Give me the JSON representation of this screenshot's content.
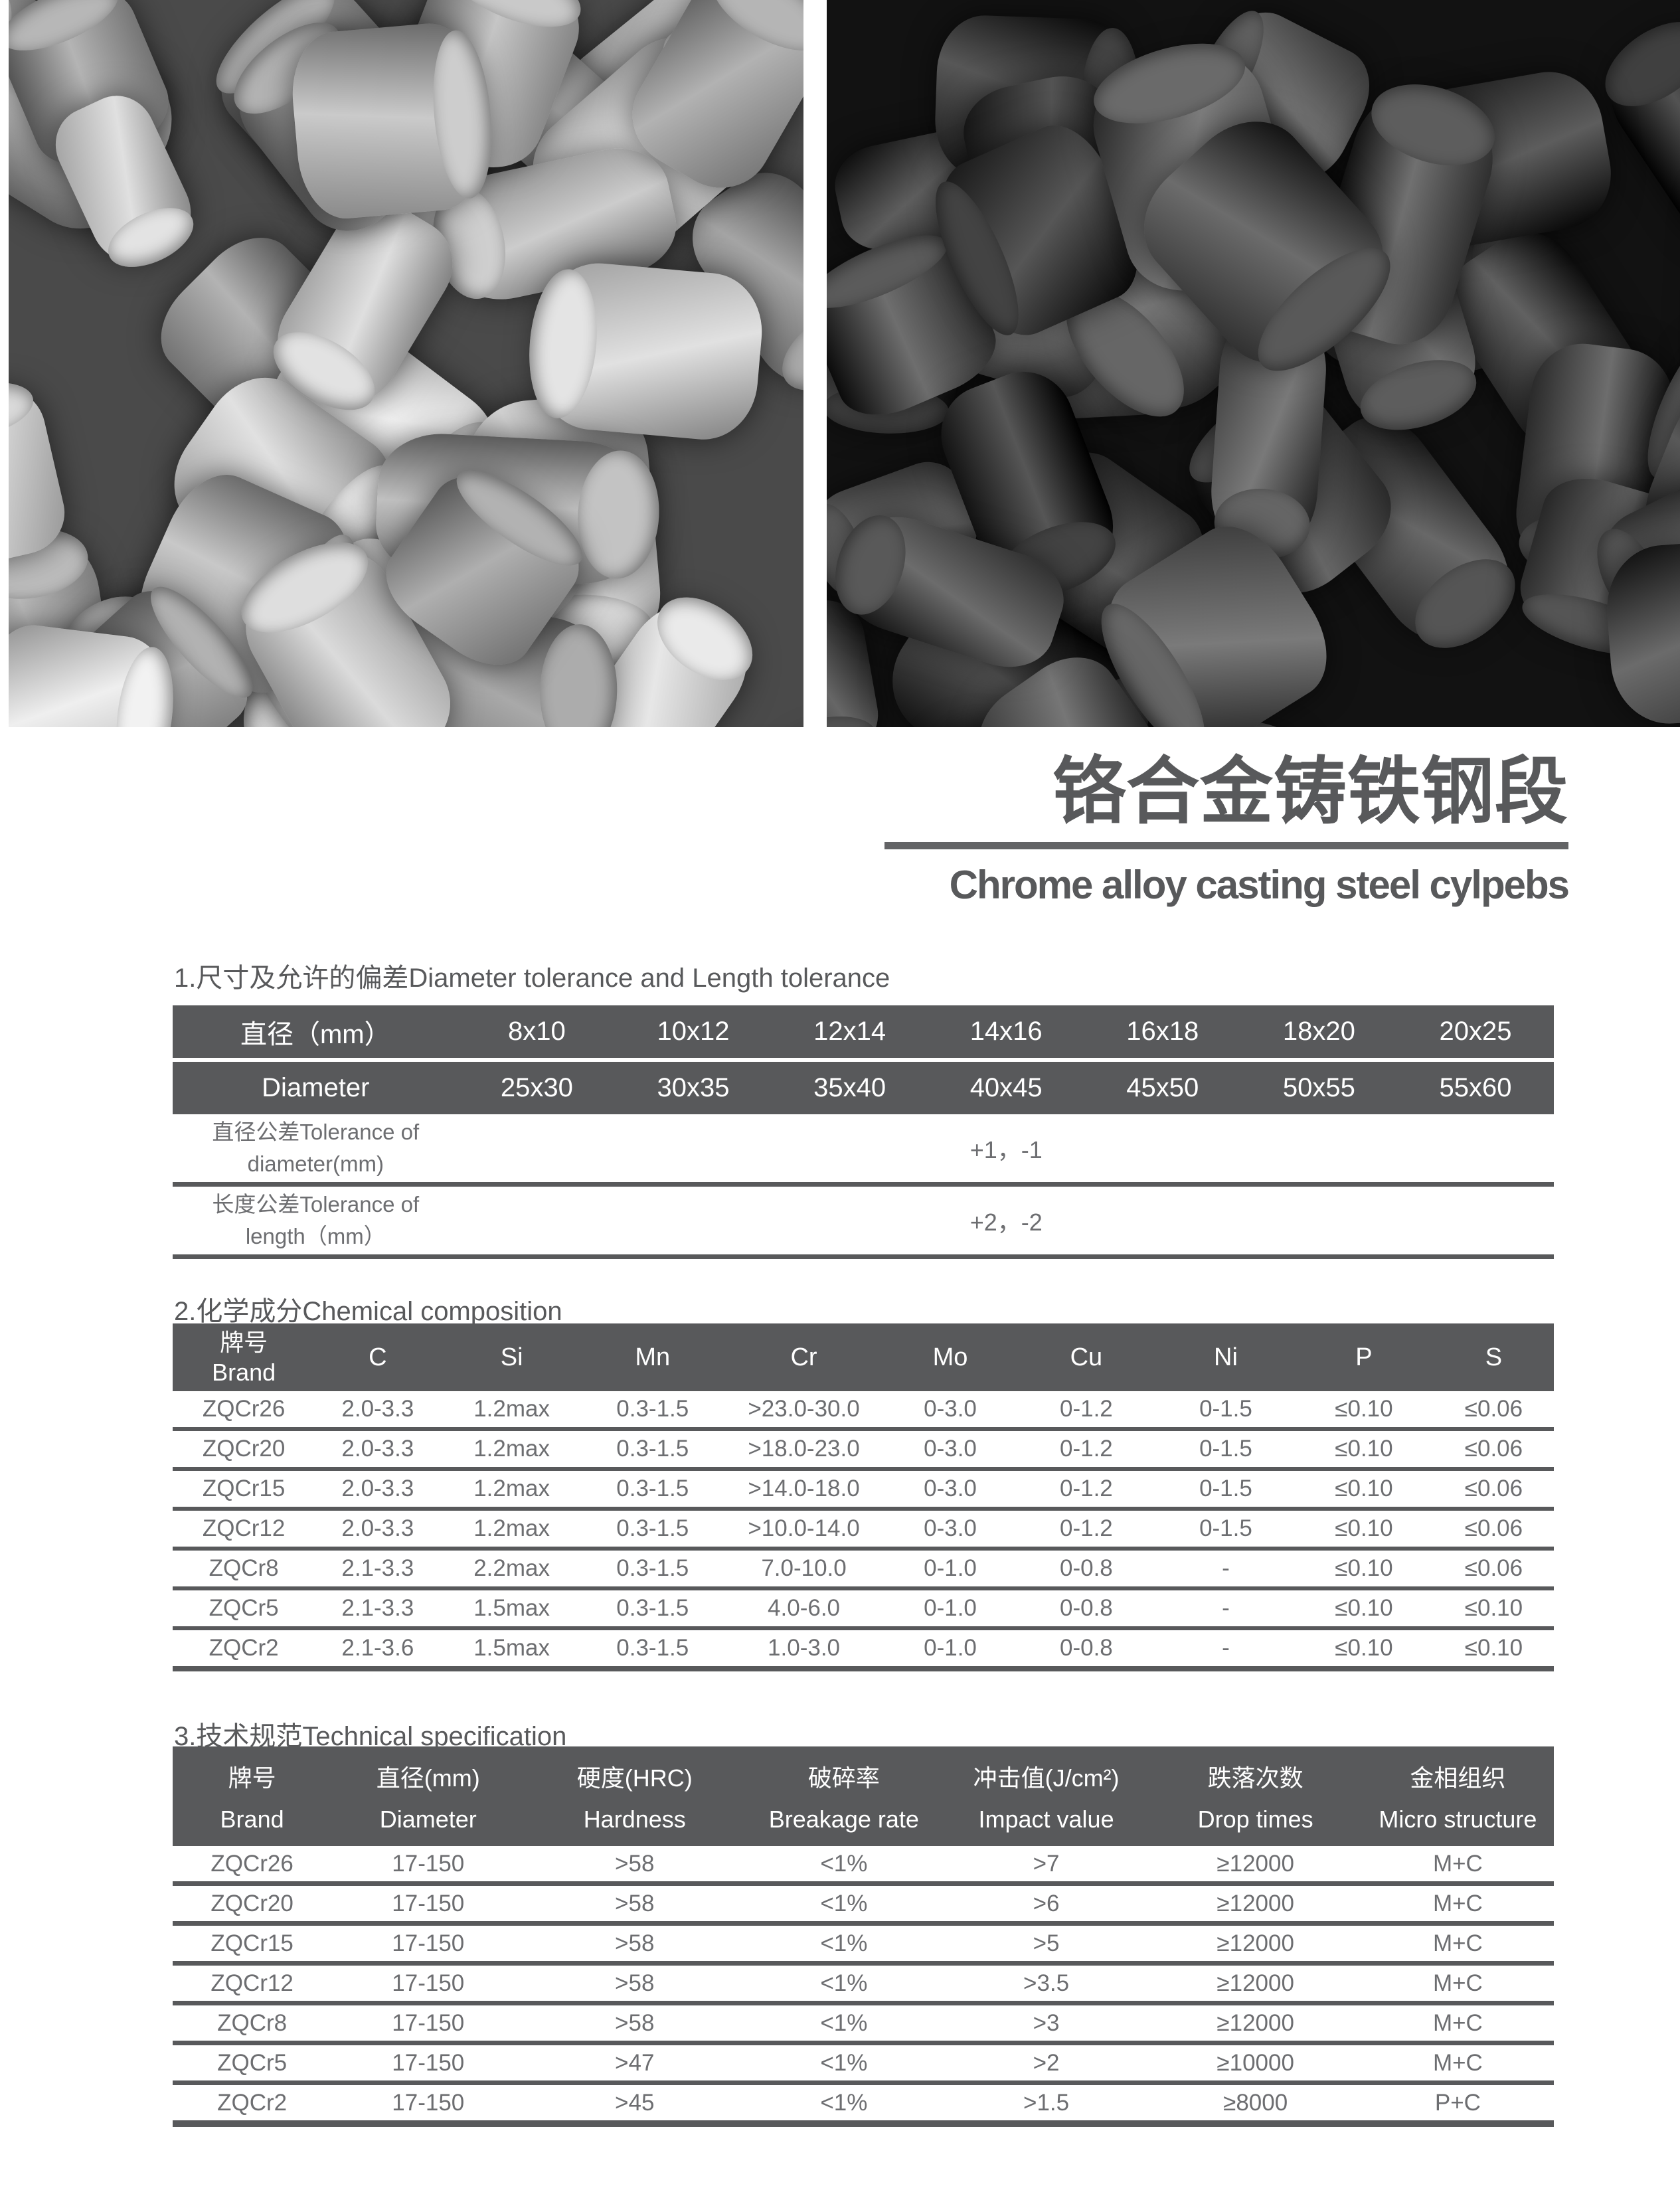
{
  "header": {
    "title_zh": "铬合金铸铁钢段",
    "title_en": "Chrome alloy casting steel cylpebs"
  },
  "colors": {
    "accent": "#58595b",
    "body_text": "#6d6e71"
  },
  "sections": {
    "size": {
      "heading": "1.尺寸及允许的偏差Diameter tolerance and Length tolerance",
      "table": {
        "row1": [
          "直径（mm）",
          "8x10",
          "10x12",
          "12x14",
          "14x16",
          "16x18",
          "18x20",
          "20x25"
        ],
        "row2": [
          "Diameter",
          "25x30",
          "30x35",
          "35x40",
          "40x45",
          "45x50",
          "50x55",
          "55x60"
        ],
        "tolerance_rows": [
          {
            "label_line1": "直径公差Tolerance of",
            "label_line2": "diameter(mm)",
            "value": "+1，-1"
          },
          {
            "label_line1": "长度公差Tolerance of",
            "label_line2": "length（mm）",
            "value": "+2，-2"
          }
        ]
      }
    },
    "chemical": {
      "heading": "2.化学成分Chemical composition",
      "table": {
        "header": {
          "brand_zh": "牌号",
          "brand_en": "Brand",
          "cols": [
            "C",
            "Si",
            "Mn",
            "Cr",
            "Mo",
            "Cu",
            "Ni",
            "P",
            "S"
          ]
        },
        "rows": [
          [
            "ZQCr26",
            "2.0-3.3",
            "1.2max",
            "0.3-1.5",
            ">23.0-30.0",
            "0-3.0",
            "0-1.2",
            "0-1.5",
            "≤0.10",
            "≤0.06"
          ],
          [
            "ZQCr20",
            "2.0-3.3",
            "1.2max",
            "0.3-1.5",
            ">18.0-23.0",
            "0-3.0",
            "0-1.2",
            "0-1.5",
            "≤0.10",
            "≤0.06"
          ],
          [
            "ZQCr15",
            "2.0-3.3",
            "1.2max",
            "0.3-1.5",
            ">14.0-18.0",
            "0-3.0",
            "0-1.2",
            "0-1.5",
            "≤0.10",
            "≤0.06"
          ],
          [
            "ZQCr12",
            "2.0-3.3",
            "1.2max",
            "0.3-1.5",
            ">10.0-14.0",
            "0-3.0",
            "0-1.2",
            "0-1.5",
            "≤0.10",
            "≤0.06"
          ],
          [
            "ZQCr8",
            "2.1-3.3",
            "2.2max",
            "0.3-1.5",
            "7.0-10.0",
            "0-1.0",
            "0-0.8",
            "-",
            "≤0.10",
            "≤0.06"
          ],
          [
            "ZQCr5",
            "2.1-3.3",
            "1.5max",
            "0.3-1.5",
            "4.0-6.0",
            "0-1.0",
            "0-0.8",
            "-",
            "≤0.10",
            "≤0.10"
          ],
          [
            "ZQCr2",
            "2.1-3.6",
            "1.5max",
            "0.3-1.5",
            "1.0-3.0",
            "0-1.0",
            "0-0.8",
            "-",
            "≤0.10",
            "≤0.10"
          ]
        ]
      }
    },
    "technical": {
      "heading": "3.技术规范Technical specification",
      "table": {
        "header": [
          {
            "zh": "牌号",
            "en": "Brand"
          },
          {
            "zh": "直径(mm)",
            "en": "Diameter"
          },
          {
            "zh": "硬度(HRC)",
            "en": "Hardness"
          },
          {
            "zh": "破碎率",
            "en": "Breakage rate"
          },
          {
            "zh": "冲击值(J/cm²)",
            "en": "Impact value"
          },
          {
            "zh": "跌落次数",
            "en": "Drop times"
          },
          {
            "zh": "金相组织",
            "en": "Micro structure"
          }
        ],
        "rows": [
          [
            "ZQCr26",
            "17-150",
            ">58",
            "<1%",
            ">7",
            "≥12000",
            "M+C"
          ],
          [
            "ZQCr20",
            "17-150",
            ">58",
            "<1%",
            ">6",
            "≥12000",
            "M+C"
          ],
          [
            "ZQCr15",
            "17-150",
            ">58",
            "<1%",
            ">5",
            "≥12000",
            "M+C"
          ],
          [
            "ZQCr12",
            "17-150",
            ">58",
            "<1%",
            ">3.5",
            "≥12000",
            "M+C"
          ],
          [
            "ZQCr8",
            "17-150",
            ">58",
            "<1%",
            ">3",
            "≥12000",
            "M+C"
          ],
          [
            "ZQCr5",
            "17-150",
            ">47",
            "<1%",
            ">2",
            "≥10000",
            "M+C"
          ],
          [
            "ZQCr2",
            "17-150",
            ">45",
            "<1%",
            ">1.5",
            "≥8000",
            "P+C"
          ]
        ]
      }
    }
  }
}
